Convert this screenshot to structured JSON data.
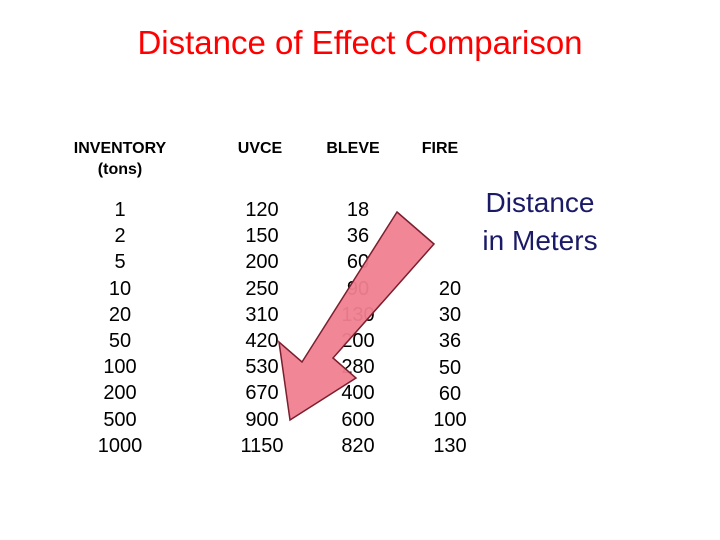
{
  "title": "Distance of Effect Comparison",
  "headers": {
    "inventory_line1": "INVENTORY",
    "inventory_line2": "(tons)",
    "uvce": "UVCE",
    "bleve": "BLEVE",
    "fire": "FIRE"
  },
  "side_label": {
    "line1": "Distance",
    "line2": "in Meters"
  },
  "columns": {
    "inventory": [
      "1",
      "2",
      "5",
      "10",
      "20",
      "50",
      "100",
      "200",
      "500",
      "1000"
    ],
    "uvce": [
      "120",
      "150",
      "200",
      "250",
      "310",
      "420",
      "530",
      "670",
      "900",
      "1150"
    ],
    "bleve": [
      "18",
      "36",
      "60",
      "90",
      "130",
      "200",
      "280",
      "400",
      "600",
      "820"
    ],
    "fire": [
      "20",
      "30",
      "36",
      "50",
      "60",
      "100",
      "130"
    ]
  },
  "colors": {
    "title": "#ff0000",
    "arrow_fill": "#f08090",
    "arrow_stroke": "#7a1f2e",
    "side_label": "#1a1a66"
  }
}
